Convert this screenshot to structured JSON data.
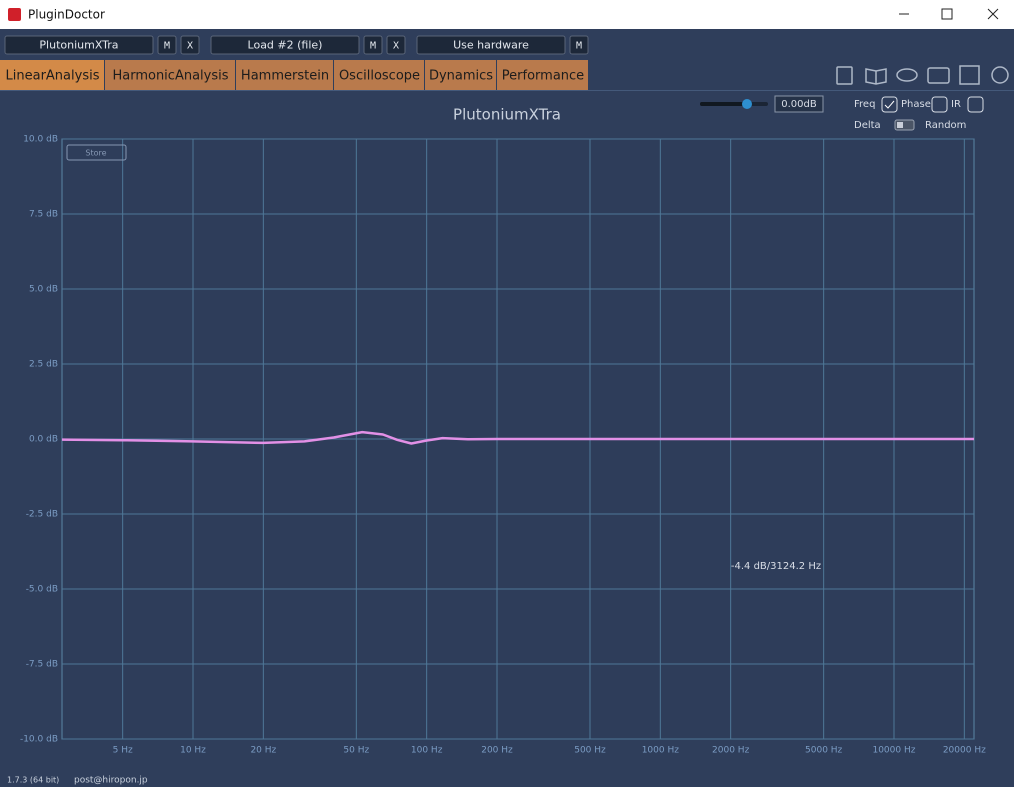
{
  "window": {
    "title": "PluginDoctor"
  },
  "toolbar": {
    "slots": [
      {
        "label": "PlutoniumXTra",
        "buttons": [
          "M",
          "X"
        ]
      },
      {
        "label": "Load #2 (file)",
        "buttons": [
          "M",
          "X"
        ]
      },
      {
        "label": "Use hardware",
        "buttons": [
          "M"
        ]
      }
    ]
  },
  "tabs": [
    "LinearAnalysis",
    "HarmonicAnalysis",
    "Hammerstein",
    "Oscilloscope",
    "Dynamics",
    "Performance"
  ],
  "active_tab": 0,
  "controls": {
    "gain": "0.00dB",
    "freq": "Freq",
    "phase": "Phase",
    "ir": "IR",
    "delta": "Delta",
    "random": "Random"
  },
  "chart_data": {
    "type": "line",
    "title": "PlutoniumXTra",
    "store_button": "Store",
    "x": [
      2.75,
      5,
      10,
      20,
      30,
      40,
      53,
      65,
      75,
      86,
      100,
      117,
      150,
      200,
      1000,
      22000
    ],
    "series": [
      {
        "color": "#e290e6",
        "values": [
          -0.02,
          -0.04,
          -0.08,
          -0.13,
          -0.08,
          0.05,
          0.23,
          0.15,
          -0.03,
          -0.15,
          -0.05,
          0.03,
          -0.01,
          0,
          0,
          0
        ]
      }
    ],
    "xscale": "log",
    "xlim": [
      2.75,
      22000
    ],
    "xticks": [
      {
        "value": 5,
        "label": "5 Hz"
      },
      {
        "value": 10,
        "label": "10 Hz"
      },
      {
        "value": 20,
        "label": "20 Hz"
      },
      {
        "value": 50,
        "label": "50 Hz"
      },
      {
        "value": 100,
        "label": "100 Hz"
      },
      {
        "value": 200,
        "label": "200 Hz"
      },
      {
        "value": 500,
        "label": "500 Hz"
      },
      {
        "value": 1000,
        "label": "1000 Hz"
      },
      {
        "value": 2000,
        "label": "2000 Hz"
      },
      {
        "value": 5000,
        "label": "5000 Hz"
      },
      {
        "value": 10000,
        "label": "10000 Hz"
      },
      {
        "value": 20000,
        "label": "20000 Hz"
      }
    ],
    "ylim": [
      -10,
      10
    ],
    "yticks": [
      {
        "value": 10,
        "label": "10.0 dB"
      },
      {
        "value": 7.5,
        "label": "7.5 dB"
      },
      {
        "value": 5,
        "label": "5.0 dB"
      },
      {
        "value": 2.5,
        "label": "2.5 dB"
      },
      {
        "value": 0,
        "label": "0.0 dB"
      },
      {
        "value": -2.5,
        "label": "-2.5 dB"
      },
      {
        "value": -5,
        "label": "-5.0 dB"
      },
      {
        "value": -7.5,
        "label": "-7.5 dB"
      },
      {
        "value": -10,
        "label": "-10.0 dB"
      }
    ],
    "grid": true,
    "annotations": [
      {
        "text": "-4.4 dB/3124.2 Hz"
      }
    ]
  },
  "footer": {
    "version": "1.7.3 (64 bit)",
    "contact": "post@hiropon.jp"
  }
}
